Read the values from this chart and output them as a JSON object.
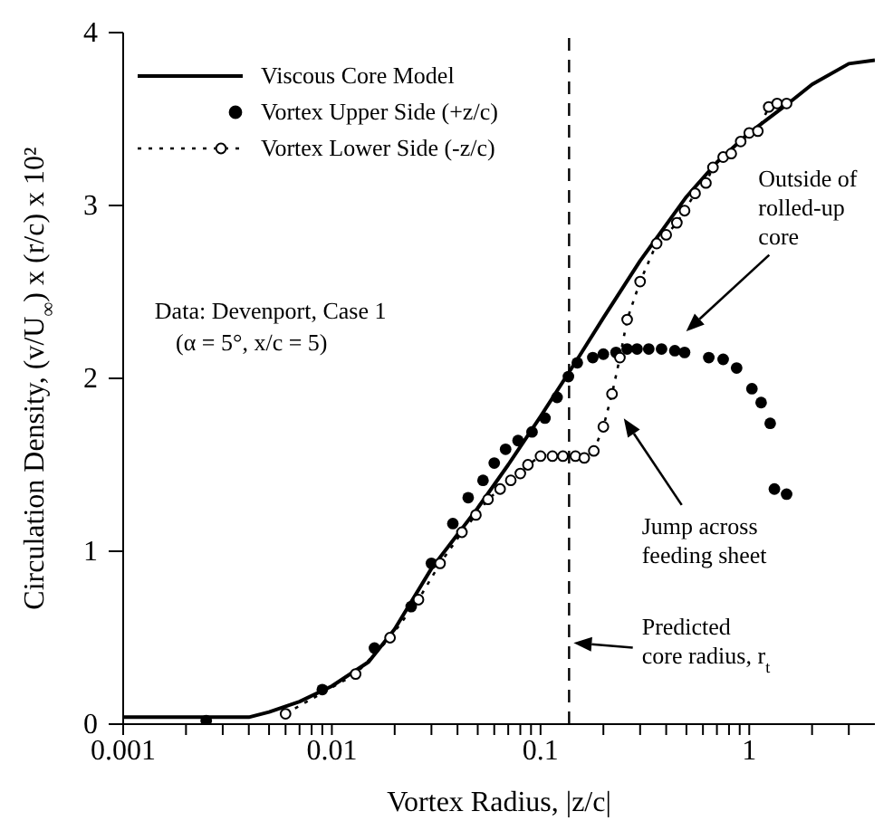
{
  "chart_data": {
    "type": "line",
    "xlabel": "Vortex Radius, |z/c|",
    "ylabel": "Circulation Density, (v/U$_{∞}$) x (r/c) x 10²",
    "log": "x",
    "xlim": [
      0.001,
      4
    ],
    "xticks": [
      0.001,
      {
        "value": 0.002,
        "label": null
      },
      {
        "value": 0.003,
        "label": null
      },
      {
        "value": 0.004,
        "label": null
      },
      {
        "value": 0.005,
        "label": null
      },
      {
        "value": 0.006,
        "label": null
      },
      {
        "value": 0.007,
        "label": null
      },
      {
        "value": 0.008,
        "label": null
      },
      {
        "value": 0.009,
        "label": null
      },
      0.01,
      {
        "value": 0.02,
        "label": null
      },
      {
        "value": 0.03,
        "label": null
      },
      {
        "value": 0.04,
        "label": null
      },
      {
        "value": 0.05,
        "label": null
      },
      {
        "value": 0.06,
        "label": null
      },
      {
        "value": 0.07,
        "label": null
      },
      {
        "value": 0.08,
        "label": null
      },
      {
        "value": 0.09,
        "label": null
      },
      0.1,
      {
        "value": 0.2,
        "label": null
      },
      {
        "value": 0.3,
        "label": null
      },
      {
        "value": 0.4,
        "label": null
      },
      {
        "value": 0.5,
        "label": null
      },
      {
        "value": 0.6,
        "label": null
      },
      {
        "value": 0.7,
        "label": null
      },
      {
        "value": 0.8,
        "label": null
      },
      {
        "value": 0.9,
        "label": null
      },
      1,
      {
        "value": 2,
        "label": null
      },
      {
        "value": 3,
        "label": null
      }
    ],
    "ylim": [
      0,
      4
    ],
    "yticks": [
      0,
      1,
      2,
      3,
      4
    ],
    "grid": false,
    "legend": "top left",
    "series": [
      {
        "name": "Viscous Core Model",
        "type": "line",
        "color": "#000000",
        "marker": "none",
        "line_style": "solid",
        "x": [
          0.001,
          0.004,
          0.005,
          0.007,
          0.01,
          0.015,
          0.02,
          0.03,
          0.05,
          0.07,
          0.1,
          0.15,
          0.2,
          0.3,
          0.5,
          0.7,
          1,
          1.5,
          2,
          3,
          4
        ],
        "values": [
          0.04,
          0.04,
          0.07,
          0.13,
          0.22,
          0.36,
          0.55,
          0.9,
          1.25,
          1.5,
          1.78,
          2.11,
          2.35,
          2.68,
          3.05,
          3.25,
          3.42,
          3.58,
          3.7,
          3.82,
          3.84
        ]
      },
      {
        "name": "Vortex Upper Side (+z/c)",
        "type": "scatter",
        "color": "#000000",
        "marker": "circle",
        "x": [
          0.0025,
          0.009,
          0.016,
          0.024,
          0.03,
          0.038,
          0.045,
          0.053,
          0.06,
          0.068,
          0.078,
          0.091,
          0.105,
          0.12,
          0.136,
          0.15,
          0.178,
          0.2,
          0.23,
          0.26,
          0.29,
          0.33,
          0.38,
          0.44,
          0.49,
          0.64,
          0.75,
          0.87,
          1.03,
          1.14,
          1.26,
          1.32,
          1.51
        ],
        "values": [
          0.02,
          0.2,
          0.44,
          0.68,
          0.93,
          1.16,
          1.31,
          1.41,
          1.51,
          1.59,
          1.64,
          1.69,
          1.77,
          1.89,
          2.01,
          2.09,
          2.12,
          2.14,
          2.15,
          2.17,
          2.17,
          2.17,
          2.17,
          2.16,
          2.15,
          2.12,
          2.11,
          2.06,
          1.94,
          1.86,
          1.74,
          1.36,
          1.33
        ]
      },
      {
        "name": "Vortex Lower Side (-z/c)",
        "type": "line",
        "color": "#000000",
        "marker": "circle",
        "line_style": "dotted",
        "x": [
          0.006,
          0.013,
          0.019,
          0.026,
          0.033,
          0.042,
          0.049,
          0.056,
          0.064,
          0.072,
          0.08,
          0.087,
          0.1,
          0.114,
          0.128,
          0.147,
          0.162,
          0.18,
          0.2,
          0.22,
          0.24,
          0.26,
          0.3,
          0.36,
          0.4,
          0.45,
          0.49,
          0.55,
          0.62,
          0.67,
          0.75,
          0.82,
          0.91,
          1.0,
          1.1,
          1.24,
          1.36,
          1.51
        ],
        "values": [
          0.06,
          0.29,
          0.5,
          0.72,
          0.93,
          1.11,
          1.21,
          1.3,
          1.36,
          1.41,
          1.45,
          1.5,
          1.55,
          1.55,
          1.55,
          1.55,
          1.54,
          1.58,
          1.72,
          1.91,
          2.12,
          2.34,
          2.56,
          2.78,
          2.83,
          2.9,
          2.97,
          3.07,
          3.13,
          3.22,
          3.28,
          3.3,
          3.37,
          3.42,
          3.43,
          3.57,
          3.59,
          3.59
        ]
      }
    ],
    "ref_lines": [
      {
        "axis": "x",
        "value": 0.137,
        "color": "#000000",
        "line_style": "dashed"
      }
    ],
    "annotations": [
      "Data: Devenport, Case 1",
      "(α = 5°, x/c = 5)",
      "Outside of rolled-up core",
      "Jump across feeding sheet",
      {
        "text": "Predicted core radius, r$_{t}$",
        "x": 0.144,
        "y": 0.47
      }
    ]
  }
}
